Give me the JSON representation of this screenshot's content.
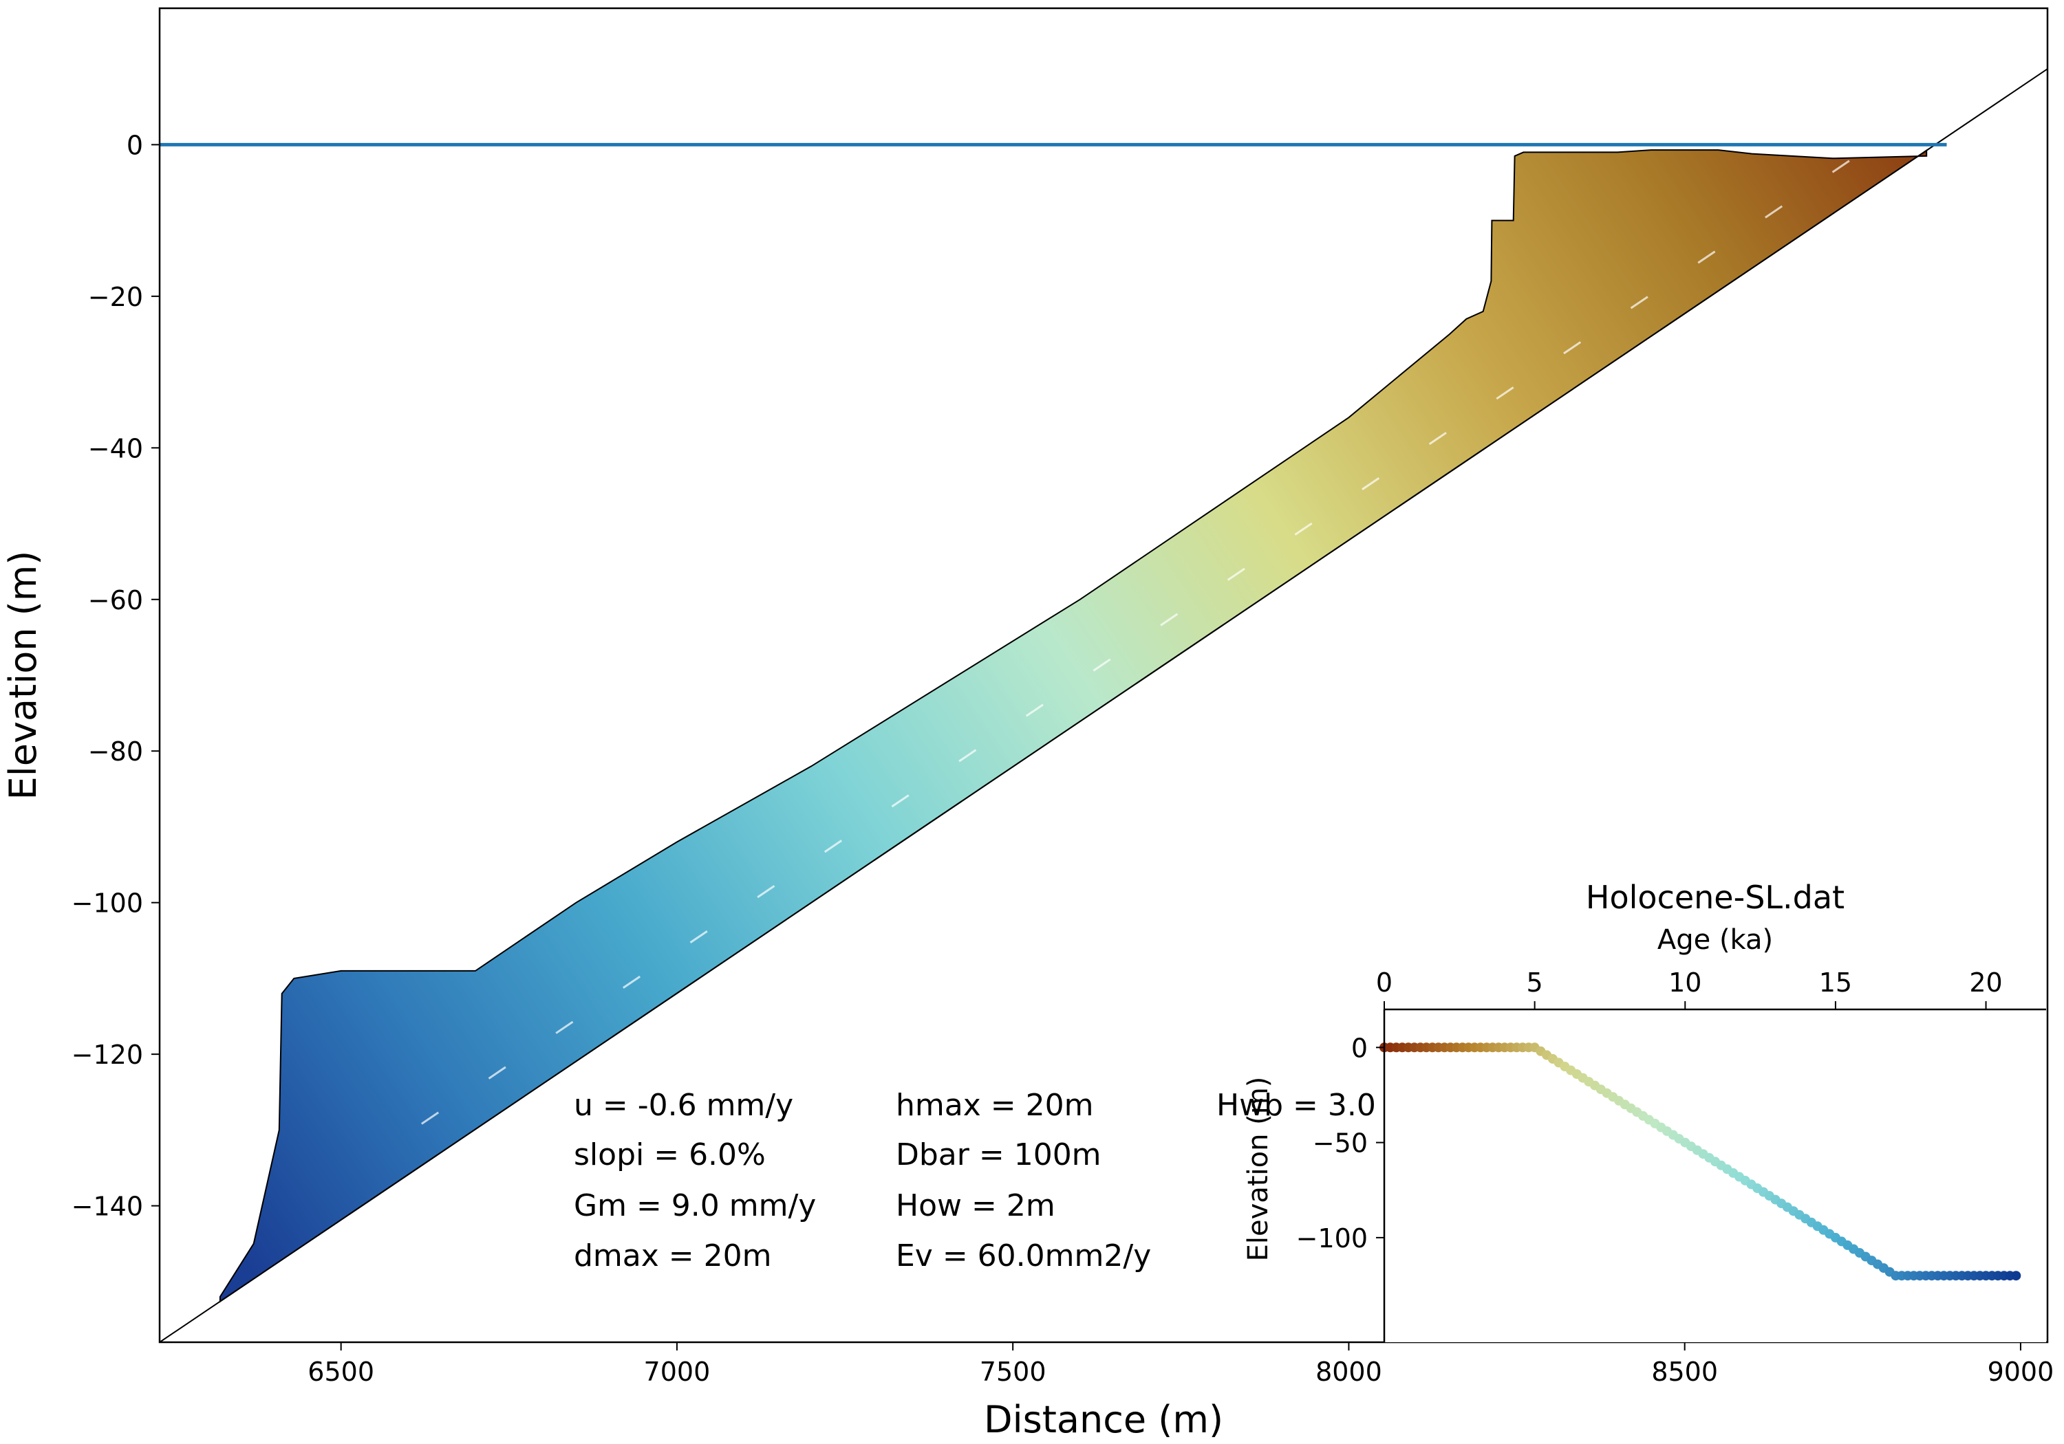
{
  "chart_data": [
    {
      "type": "area",
      "title": "",
      "xlabel": "Distance (m)",
      "ylabel": "Elevation (m)",
      "xlim": [
        6230,
        9040
      ],
      "ylim": [
        -158,
        18
      ],
      "x_ticks": [
        6500,
        7000,
        7500,
        8000,
        8500,
        9000
      ],
      "y_ticks": [
        0,
        -20,
        -40,
        -60,
        -80,
        -100,
        -120,
        -140
      ],
      "grid": false,
      "sea_level": {
        "elevation": 0,
        "x_start": 6230,
        "x_end": 8890,
        "color": "#1f77b4"
      },
      "substrate": {
        "slope_percent": 6.0,
        "x_start": 6230,
        "y_start": -158,
        "x_end": 9040,
        "y_end": 10
      },
      "deposit_top_profile": {
        "x": [
          6320,
          6370,
          6408,
          6412,
          6430,
          6500,
          6600,
          6700,
          6750,
          6850,
          7000,
          7200,
          7400,
          7600,
          7800,
          8000,
          8150,
          8175,
          8200,
          8212,
          8213,
          8245,
          8247,
          8260,
          8300,
          8350,
          8400,
          8450,
          8550,
          8600,
          8720,
          8860
        ],
        "y": [
          -152,
          -145,
          -130,
          -112,
          -110,
          -109,
          -109,
          -109,
          -106,
          -100,
          -92,
          -82,
          -71,
          -60,
          -48,
          -36,
          -25,
          -23,
          -22,
          -18,
          -10,
          -10,
          -1.5,
          -1,
          -1,
          -1,
          -1,
          -0.7,
          -0.7,
          -1.2,
          -1.8,
          -1.5
        ]
      },
      "color_scale": [
        "#1a3e94",
        "#2f78b8",
        "#48a9cc",
        "#7fd3d6",
        "#b8e8cc",
        "#d8dc88",
        "#c8a84c",
        "#a87a28",
        "#8a3a10"
      ],
      "annotation_lines": [
        {
          "text": "u = -0.6 mm/y"
        },
        {
          "text": "slopi = 6.0%"
        },
        {
          "text": "Gm = 9.0 mm/y"
        },
        {
          "text": "dmax = 20m"
        },
        {
          "text": "hmax = 20m"
        },
        {
          "text": "Dbar = 100m"
        },
        {
          "text": "How = 2m"
        },
        {
          "text": "Ev = 60.0mm2/y"
        },
        {
          "text": "Hwb = 3.0"
        }
      ]
    },
    {
      "type": "scatter",
      "title": "Holocene-SL.dat",
      "xlabel": "Age (ka)",
      "ylabel": "Elevation (m)",
      "xlim": [
        0,
        22
      ],
      "ylim": [
        -155,
        20
      ],
      "x_ticks": [
        0,
        5,
        10,
        15,
        20
      ],
      "y_ticks": [
        0,
        -50,
        -100
      ],
      "x_axis_position": "top",
      "grid": false,
      "series": [
        {
          "age_start_ka": 0,
          "age_end_ka": 21,
          "step_ka": 0.2,
          "segments": [
            {
              "x": [
                0,
                5
              ],
              "y": [
                0,
                0
              ]
            },
            {
              "x": [
                5,
                17
              ],
              "y": [
                0,
                -120
              ]
            },
            {
              "x": [
                17,
                21
              ],
              "y": [
                -120,
                -120
              ]
            }
          ],
          "colormap": [
            "#8a2a08",
            "#b8862e",
            "#d2d68c",
            "#bfe8c4",
            "#8fdcd6",
            "#4aafd0",
            "#2c74b6",
            "#0f3a92"
          ]
        }
      ]
    }
  ]
}
